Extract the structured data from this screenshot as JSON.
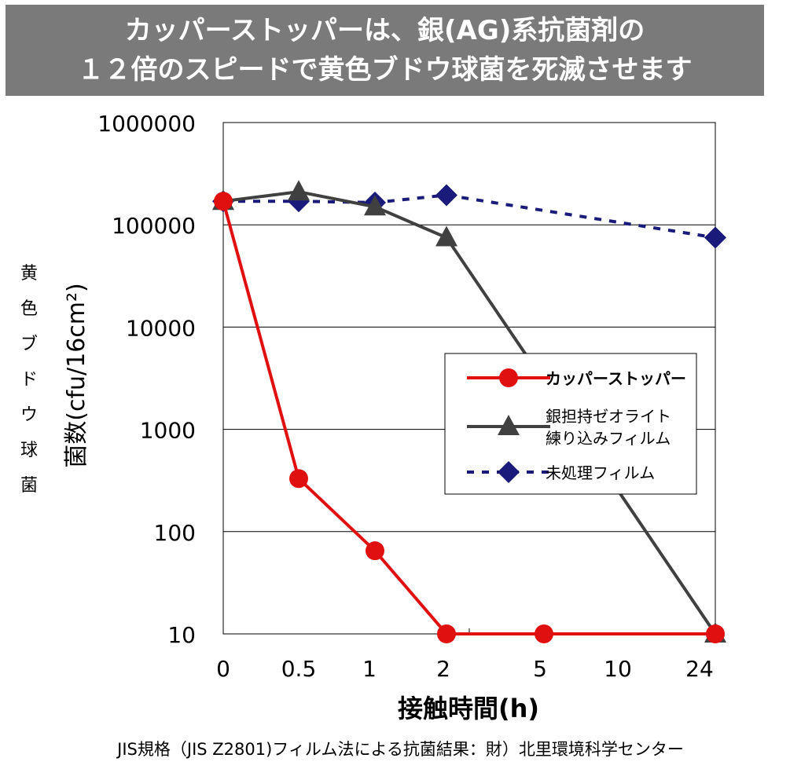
{
  "header": {
    "line1": "カッパーストッパーは、銀(AG)系抗菌剤の",
    "line2": "１２倍のスピードで黄色ブドウ球菌を死滅させます"
  },
  "side_label": [
    "黄",
    "色",
    "ブ",
    "ド",
    "ウ",
    "球",
    "菌"
  ],
  "footer": {
    "source": "JIS規格（JIS Z2801)フィルム法による抗菌結果：財）北里環境科学センター"
  },
  "colors": {
    "banner": "#7a7a7a",
    "copper": "#e01010",
    "silver": "#404040",
    "untreated": "#1a1a7a"
  },
  "chart_data": {
    "type": "line",
    "title": "",
    "xlabel": "接触時間(h)",
    "ylabel": "菌数(cfu/16cm²)",
    "yscale": "log",
    "ylim": [
      10,
      1000000
    ],
    "yticks": [
      "1000000",
      "100000",
      "10000",
      "1000",
      "100",
      "10"
    ],
    "x": [
      "0",
      "0.5",
      "1",
      "2",
      "5",
      "10",
      "24"
    ],
    "grid": "horizontal",
    "legend_position": "center-right",
    "series": [
      {
        "name": "カッパーストッパー",
        "bold": true,
        "color": "#e01010",
        "marker": "circle",
        "line": "solid",
        "points": [
          {
            "x": "0",
            "y": 170000
          },
          {
            "x": "0.5",
            "y": 330
          },
          {
            "x": "1",
            "y": 65
          },
          {
            "x": "2",
            "y": 10
          },
          {
            "x": "5",
            "y": 10
          },
          {
            "x": "24",
            "y": 10
          }
        ]
      },
      {
        "name": "銀担持ゼオライト\n練り込みフィルム",
        "bold": false,
        "color": "#404040",
        "marker": "triangle",
        "line": "solid",
        "points": [
          {
            "x": "0",
            "y": 170000
          },
          {
            "x": "0.5",
            "y": 210000
          },
          {
            "x": "1",
            "y": 150000
          },
          {
            "x": "2",
            "y": 75000
          },
          {
            "x": "24",
            "y": 10
          }
        ]
      },
      {
        "name": "未処理フィルム",
        "bold": false,
        "color": "#1a1a7a",
        "marker": "diamond",
        "line": "dashed",
        "points": [
          {
            "x": "0",
            "y": 170000
          },
          {
            "x": "0.5",
            "y": 170000
          },
          {
            "x": "1",
            "y": 165000
          },
          {
            "x": "2",
            "y": 195000
          },
          {
            "x": "24",
            "y": 75000
          }
        ]
      }
    ]
  }
}
